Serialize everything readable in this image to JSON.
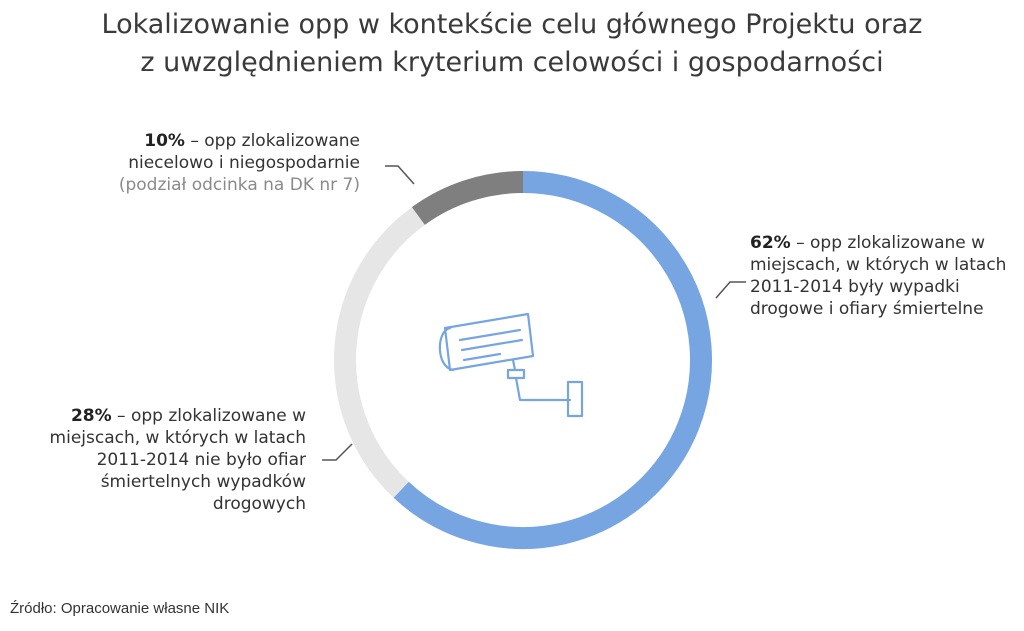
{
  "title": {
    "line1": "Lokalizowanie opp w kontekście celu głównego Projektu oraz",
    "line2": "z uwzględnieniem kryterium celowości i gospodarności"
  },
  "chart_data": {
    "type": "pie",
    "variant": "donut",
    "slices": [
      {
        "value": 62,
        "pct_text": "62%",
        "color": "#76a5e2",
        "text": " – opp zlokalizowane w miejscach, w których w latach 2011-2014 były wypadki drogowe i ofiary śmiertelne"
      },
      {
        "value": 28,
        "pct_text": "28%",
        "color": "#e6e6e6",
        "text": " – opp zlokalizowane w miejscach, w których w latach 2011-2014 nie było ofiar śmiertelnych wypadków drogowych"
      },
      {
        "value": 10,
        "pct_text": "10%",
        "color": "#7f7f7f",
        "text": " – opp zlokalizowane niecelowo i niegospodarnie",
        "note": "(podział odcinka na DK nr 7)"
      }
    ],
    "center_icon": "security-camera-icon",
    "label_line_color": "#555555"
  },
  "source": "Źródło: Opracowanie własne NIK"
}
